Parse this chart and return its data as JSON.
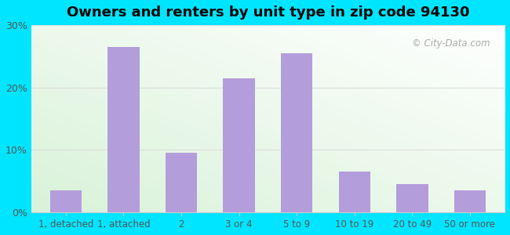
{
  "title": "Owners and renters by unit type in zip code 94130",
  "categories": [
    "1, detached",
    "1, attached",
    "2",
    "3 or 4",
    "5 to 9",
    "10 to 19",
    "20 to 49",
    "50 or more"
  ],
  "values": [
    3.5,
    26.5,
    9.5,
    21.5,
    25.5,
    6.5,
    4.5,
    3.5
  ],
  "bar_color": "#b39ddb",
  "ylim": [
    0,
    30
  ],
  "yticks": [
    0,
    10,
    20,
    30
  ],
  "ytick_labels": [
    "0%",
    "10%",
    "20%",
    "30%"
  ],
  "title_fontsize": 13,
  "tick_fontsize": 9,
  "outer_bg": "#00e5ff",
  "watermark": "© City-Data.com",
  "grid_color": "#dddddd"
}
